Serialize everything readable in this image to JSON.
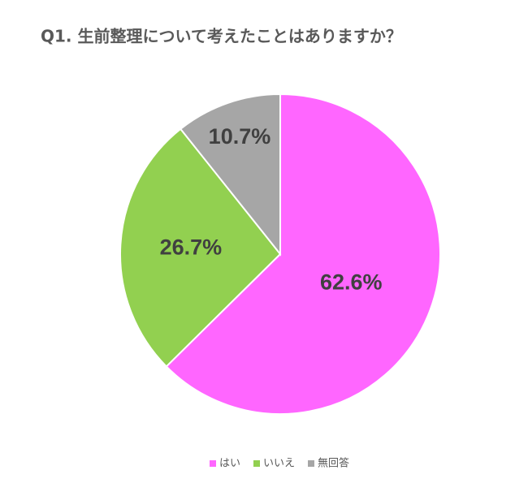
{
  "chart_data": {
    "type": "pie",
    "title": "Q1.  生前整理について考えたことはありますか？",
    "categories": [
      "はい",
      "いいえ",
      "無回答"
    ],
    "values": [
      62.6,
      26.7,
      10.7
    ],
    "value_labels": [
      "62.6%",
      "26.7%",
      "10.7%"
    ],
    "colors": [
      "#ff66ff",
      "#92d050",
      "#a6a6a6"
    ],
    "legend": "bottom"
  }
}
